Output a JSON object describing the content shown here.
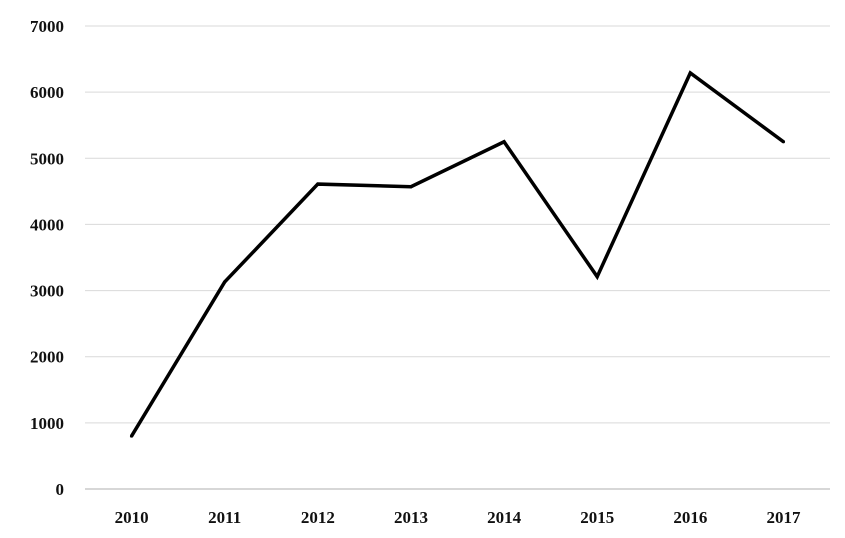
{
  "chart_data": {
    "type": "line",
    "title": "",
    "xlabel": "",
    "ylabel": "",
    "categories": [
      "2010",
      "2011",
      "2012",
      "2013",
      "2014",
      "2015",
      "2016",
      "2017"
    ],
    "series": [
      {
        "values": [
          800,
          3130,
          4610,
          4570,
          5250,
          3210,
          6290,
          5250
        ],
        "color": "#000000"
      }
    ],
    "ylim": [
      0,
      7000
    ],
    "yticks": [
      "0",
      "1000",
      "2000",
      "3000",
      "4000",
      "5000",
      "6000",
      "7000"
    ],
    "grid": true,
    "legend": "none"
  }
}
